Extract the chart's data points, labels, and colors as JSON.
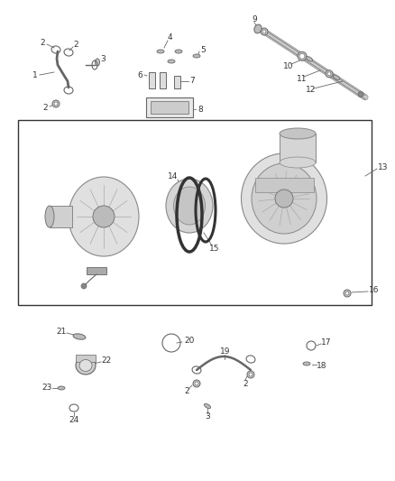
{
  "bg_color": "#ffffff",
  "line_color": "#666666",
  "text_color": "#333333",
  "fig_width": 4.38,
  "fig_height": 5.33,
  "dpi": 100
}
